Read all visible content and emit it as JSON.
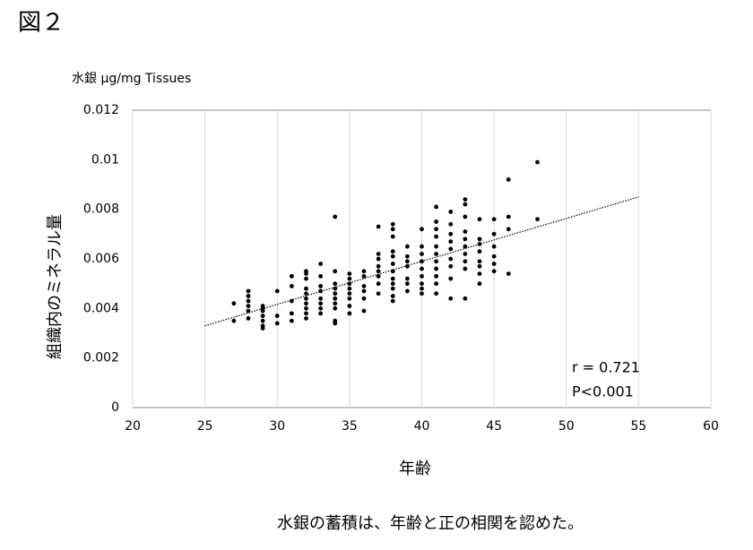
{
  "fig_label": "図２",
  "caption": "水銀の蓄積は、年齢と正の相関を認めた。",
  "chart_data": {
    "type": "scatter",
    "unit_label": "水銀 μg/mg Tissues",
    "ylabel": "組織内のミネラル量",
    "xlabel": "年齢",
    "annotations": [
      "r = 0.721",
      "P<0.001"
    ],
    "color": "#000000",
    "grid": "x",
    "xlim": [
      20,
      60
    ],
    "xticks": [
      20,
      25,
      30,
      35,
      40,
      45,
      50,
      55,
      60
    ],
    "ylim": [
      0,
      0.012
    ],
    "yticks": [
      0,
      0.002,
      0.004,
      0.006,
      0.008,
      0.01,
      0.012
    ],
    "x": [
      27,
      27,
      28,
      28,
      28,
      28,
      28,
      28,
      29,
      29,
      29,
      29,
      29,
      29,
      29,
      30,
      30,
      30,
      31,
      31,
      31,
      31,
      31,
      32,
      32,
      32,
      32,
      32,
      32,
      32,
      32,
      32,
      32,
      33,
      33,
      33,
      33,
      33,
      33,
      33,
      33,
      34,
      34,
      34,
      34,
      34,
      34,
      34,
      34,
      34,
      34,
      35,
      35,
      35,
      35,
      35,
      35,
      35,
      35,
      36,
      36,
      36,
      36,
      36,
      36,
      37,
      37,
      37,
      37,
      37,
      37,
      37,
      37,
      38,
      38,
      38,
      38,
      38,
      38,
      38,
      38,
      38,
      38,
      38,
      38,
      39,
      39,
      39,
      39,
      39,
      39,
      39,
      40,
      40,
      40,
      40,
      40,
      40,
      40,
      40,
      40,
      41,
      41,
      41,
      41,
      41,
      41,
      41,
      41,
      41,
      41,
      41,
      42,
      42,
      42,
      42,
      42,
      42,
      42,
      42,
      42,
      43,
      43,
      43,
      43,
      43,
      43,
      43,
      43,
      43,
      43,
      44,
      44,
      44,
      44,
      44,
      44,
      44,
      44,
      45,
      45,
      45,
      45,
      45,
      45,
      46,
      46,
      46,
      46,
      48,
      48
    ],
    "values": [
      0.0042,
      0.0035,
      0.0047,
      0.0045,
      0.0043,
      0.0041,
      0.0039,
      0.0036,
      0.0041,
      0.0039,
      0.0037,
      0.0035,
      0.0033,
      0.0032,
      0.004,
      0.0047,
      0.0037,
      0.0034,
      0.0053,
      0.0049,
      0.0043,
      0.0038,
      0.0035,
      0.0055,
      0.0054,
      0.0052,
      0.0048,
      0.0046,
      0.0044,
      0.0042,
      0.004,
      0.0038,
      0.0036,
      0.0058,
      0.0053,
      0.0049,
      0.0047,
      0.0044,
      0.0042,
      0.004,
      0.0038,
      0.0077,
      0.0055,
      0.005,
      0.0048,
      0.0046,
      0.0044,
      0.0042,
      0.004,
      0.0035,
      0.0034,
      0.0054,
      0.0052,
      0.005,
      0.0048,
      0.0046,
      0.0044,
      0.0041,
      0.0038,
      0.0055,
      0.0053,
      0.0049,
      0.0047,
      0.0044,
      0.0039,
      0.0073,
      0.0062,
      0.006,
      0.0057,
      0.0055,
      0.0053,
      0.005,
      0.0046,
      0.0074,
      0.0072,
      0.0069,
      0.0063,
      0.0061,
      0.0058,
      0.0055,
      0.0052,
      0.005,
      0.0048,
      0.0045,
      0.0043,
      0.0065,
      0.0061,
      0.0059,
      0.0057,
      0.0052,
      0.005,
      0.0047,
      0.0072,
      0.0065,
      0.0062,
      0.0059,
      0.0056,
      0.0053,
      0.005,
      0.0048,
      0.0046,
      0.0081,
      0.0075,
      0.0072,
      0.0069,
      0.0065,
      0.0062,
      0.0059,
      0.0056,
      0.0053,
      0.005,
      0.0046,
      0.0079,
      0.0074,
      0.007,
      0.0067,
      0.0064,
      0.006,
      0.0057,
      0.0052,
      0.0044,
      0.0084,
      0.0082,
      0.0077,
      0.0071,
      0.0068,
      0.0065,
      0.0062,
      0.0059,
      0.0056,
      0.0044,
      0.0076,
      0.0068,
      0.0066,
      0.0063,
      0.0059,
      0.0057,
      0.0054,
      0.005,
      0.0076,
      0.007,
      0.0065,
      0.0061,
      0.0058,
      0.0055,
      0.0092,
      0.0077,
      0.0072,
      0.0054,
      0.0099,
      0.0076
    ],
    "trendline": {
      "x": [
        25,
        55
      ],
      "values": [
        0.0033,
        0.0085
      ]
    }
  }
}
